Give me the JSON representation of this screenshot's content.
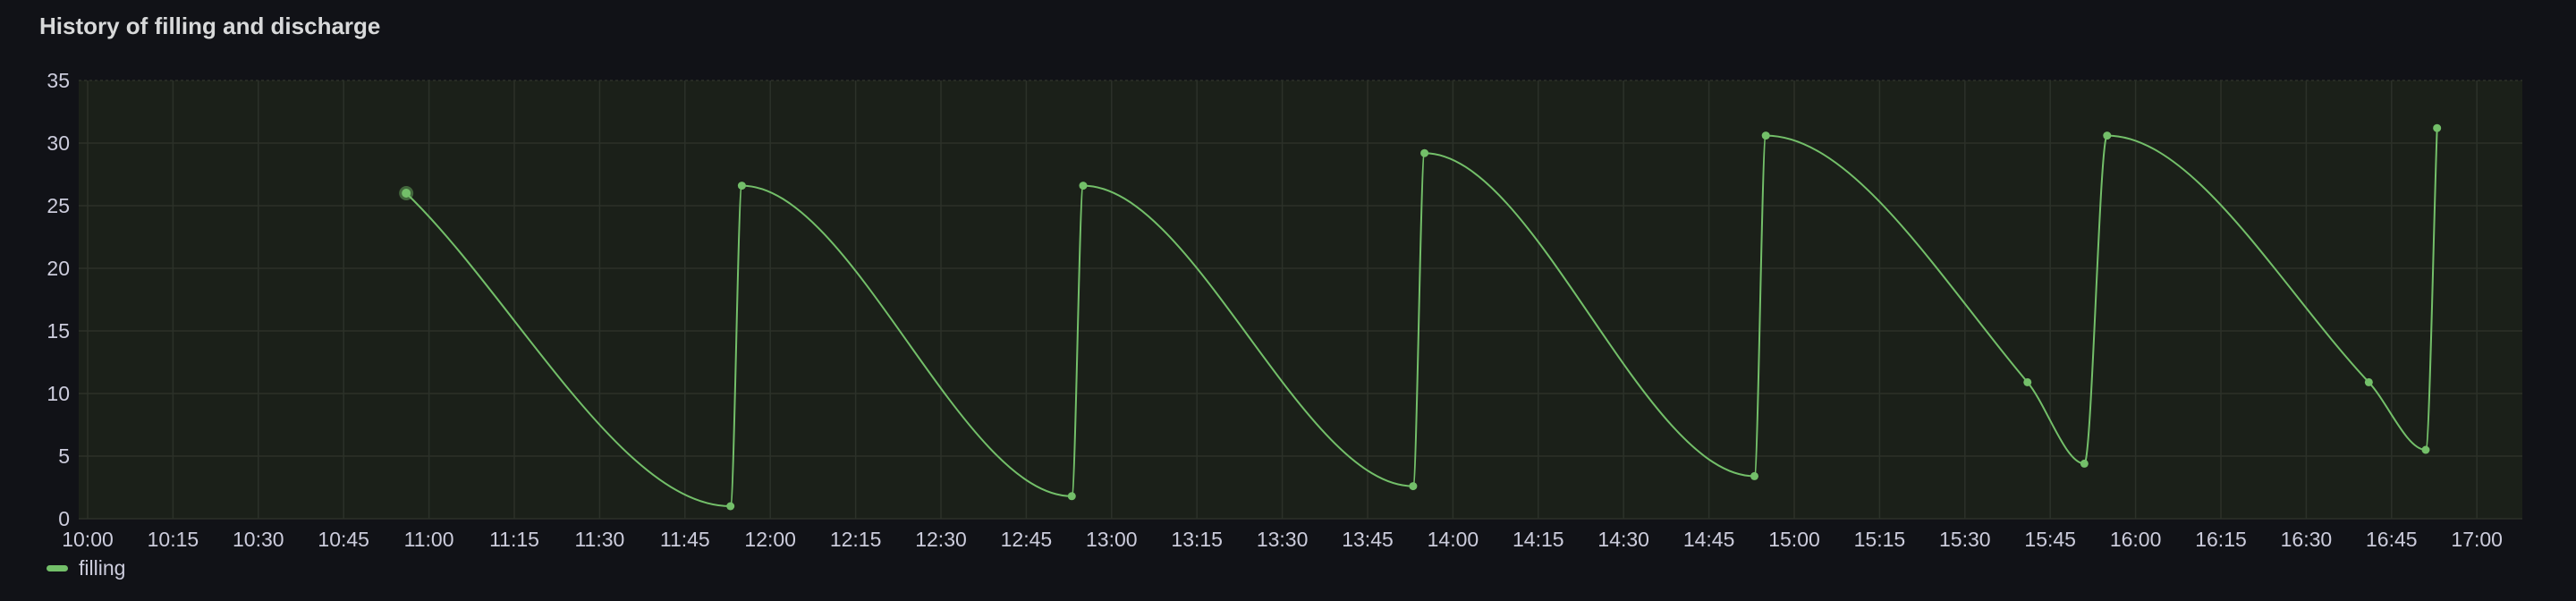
{
  "panel": {
    "title": "History of filling and discharge"
  },
  "legend": {
    "items": [
      {
        "label": "filling",
        "color": "#73bf69"
      }
    ]
  },
  "colors": {
    "background": "#111217",
    "plot_background": "#1b2019",
    "grid": "#2c3129",
    "series": "#73bf69",
    "text": "#ccccdc"
  },
  "chart_data": {
    "type": "line",
    "title": "History of filling and discharge",
    "xlabel": "",
    "ylabel": "",
    "xlim": [
      "10:00",
      "17:05"
    ],
    "ylim": [
      0,
      35
    ],
    "grid": true,
    "legend_position": "bottom-left",
    "x_ticks": [
      "10:00",
      "10:15",
      "10:30",
      "10:45",
      "11:00",
      "11:15",
      "11:30",
      "11:45",
      "12:00",
      "12:15",
      "12:30",
      "12:45",
      "13:00",
      "13:15",
      "13:30",
      "13:45",
      "14:00",
      "14:15",
      "14:30",
      "14:45",
      "15:00",
      "15:15",
      "15:30",
      "15:45",
      "16:00",
      "16:15",
      "16:30",
      "16:45",
      "17:00"
    ],
    "y_ticks": [
      0,
      5,
      10,
      15,
      20,
      25,
      30,
      35
    ],
    "series": [
      {
        "name": "filling",
        "color": "#73bf69",
        "points": [
          {
            "x": "10:56",
            "y": 26
          },
          {
            "x": "11:53",
            "y": 1
          },
          {
            "x": "11:55",
            "y": 26.6
          },
          {
            "x": "12:53",
            "y": 1.8
          },
          {
            "x": "12:55",
            "y": 26.6
          },
          {
            "x": "13:53",
            "y": 2.6
          },
          {
            "x": "13:55",
            "y": 29.2
          },
          {
            "x": "14:53",
            "y": 3.4
          },
          {
            "x": "14:55",
            "y": 30.6
          },
          {
            "x": "15:41",
            "y": 10.9
          },
          {
            "x": "15:51",
            "y": 4.4
          },
          {
            "x": "15:55",
            "y": 30.6
          },
          {
            "x": "16:41",
            "y": 10.9
          },
          {
            "x": "16:51",
            "y": 5.5
          },
          {
            "x": "16:53",
            "y": 31.2
          }
        ]
      }
    ]
  }
}
